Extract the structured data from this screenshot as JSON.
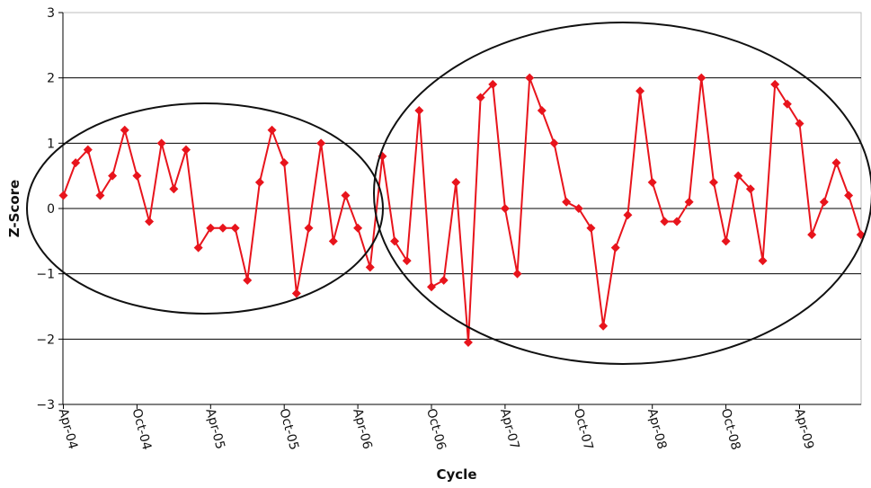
{
  "chart_data": {
    "type": "line",
    "title": "",
    "xlabel": "Cycle",
    "ylabel": "Z-Score",
    "ylim": [
      -3,
      3
    ],
    "yticks": [
      "-3",
      "-2",
      "-1",
      "0",
      "1",
      "2",
      "3"
    ],
    "xticks": [
      "Apr-04",
      "Oct-04",
      "Apr-05",
      "Oct-05",
      "Apr-06",
      "Oct-06",
      "Apr-07",
      "Oct-07",
      "Apr-08",
      "Oct-08",
      "Apr-09"
    ],
    "grid": "horizontal",
    "series_color": "#e8141c",
    "marker": "diamond",
    "series": [
      {
        "values": [
          0.2,
          0.7,
          0.9,
          0.2,
          0.5,
          1.2,
          0.5,
          -0.2,
          1.0,
          0.3,
          0.9,
          -0.6,
          -0.3,
          -0.3,
          -0.3,
          -1.1,
          0.4,
          1.2,
          0.7,
          -1.3,
          -0.3,
          1.0,
          -0.5,
          0.2,
          -0.3,
          -0.9,
          0.8,
          -0.5,
          -0.8,
          1.5,
          -1.2,
          -1.1,
          0.4,
          -2.05,
          1.7,
          1.9,
          0.0,
          -1.0,
          2.0,
          1.5,
          1.0,
          0.1,
          0.0,
          -0.3,
          -1.8,
          -0.6,
          -0.1,
          1.8,
          0.4,
          -0.2,
          -0.2,
          0.1,
          2.0,
          0.4,
          -0.5,
          0.5,
          0.3,
          -0.8,
          1.9,
          1.6,
          1.3,
          -0.4,
          0.1,
          0.7,
          0.2,
          -0.4
        ]
      }
    ],
    "annotations": [
      {
        "type": "ellipse",
        "description": "encircles first period (Apr-04 to Apr-06)"
      },
      {
        "type": "ellipse",
        "description": "encircles second period (Apr-06 onward)"
      }
    ]
  }
}
